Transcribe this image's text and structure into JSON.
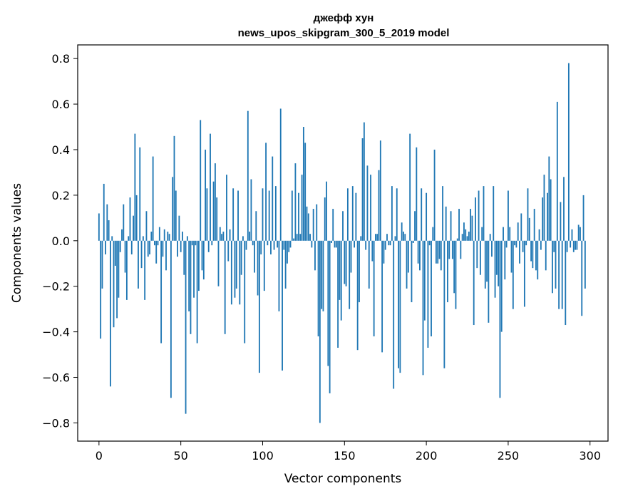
{
  "chart_data": {
    "type": "bar",
    "title": "джефф хун",
    "subtitle": "news_upos_skipgram_300_5_2019 model",
    "xlabel": "Vector components",
    "ylabel": "Components values",
    "xlim": [
      -13,
      311
    ],
    "ylim": [
      -0.88,
      0.86
    ],
    "xticks": [
      0,
      50,
      100,
      150,
      200,
      250,
      300
    ],
    "yticks": [
      -0.8,
      -0.6,
      -0.4,
      -0.2,
      0.0,
      0.2,
      0.4,
      0.6,
      0.8
    ],
    "ytick_labels": [
      "−0.8",
      "−0.6",
      "−0.4",
      "−0.2",
      "0.0",
      "0.2",
      "0.4",
      "0.6",
      "0.8"
    ],
    "grid": false,
    "bar_color": "#1f77b4",
    "x": "0..299",
    "values": [
      0.12,
      -0.43,
      -0.21,
      0.25,
      -0.06,
      0.16,
      0.09,
      -0.64,
      0.02,
      -0.38,
      -0.11,
      -0.34,
      -0.25,
      -0.05,
      0.05,
      0.16,
      -0.14,
      -0.26,
      0.02,
      0.19,
      -0.06,
      0.11,
      0.47,
      0.2,
      -0.21,
      0.41,
      -0.12,
      0.02,
      -0.26,
      0.13,
      -0.07,
      -0.06,
      0.04,
      0.37,
      -0.02,
      -0.1,
      -0.02,
      0.06,
      -0.45,
      -0.07,
      0.05,
      -0.13,
      0.04,
      0.03,
      -0.69,
      0.28,
      0.46,
      0.22,
      -0.07,
      0.11,
      -0.05,
      0.04,
      -0.15,
      -0.76,
      0.02,
      -0.31,
      -0.41,
      -0.02,
      -0.25,
      -0.02,
      -0.45,
      -0.22,
      0.53,
      -0.13,
      -0.17,
      0.4,
      0.23,
      -0.05,
      0.47,
      -0.02,
      0.26,
      0.34,
      0.19,
      -0.2,
      0.06,
      0.03,
      0.04,
      -0.41,
      0.29,
      -0.09,
      0.05,
      -0.28,
      0.23,
      -0.25,
      -0.21,
      0.22,
      -0.28,
      -0.15,
      0.02,
      -0.45,
      -0.04,
      0.57,
      0.04,
      0.27,
      -0.02,
      -0.14,
      0.13,
      -0.24,
      -0.58,
      -0.06,
      0.23,
      -0.22,
      0.43,
      -0.02,
      0.22,
      -0.06,
      0.37,
      -0.04,
      0.24,
      -0.03,
      -0.31,
      0.58,
      -0.57,
      -0.04,
      -0.21,
      -0.1,
      -0.05,
      -0.03,
      0.22,
      0.01,
      0.34,
      0.03,
      0.21,
      0.03,
      0.29,
      0.5,
      0.43,
      0.15,
      0.12,
      0.03,
      -0.03,
      0.14,
      -0.13,
      0.16,
      -0.42,
      -0.8,
      -0.3,
      -0.31,
      0.19,
      0.26,
      -0.55,
      -0.67,
      -0.01,
      0.14,
      -0.03,
      -0.03,
      -0.47,
      -0.26,
      -0.35,
      0.13,
      -0.19,
      -0.2,
      0.23,
      -0.3,
      -0.14,
      0.24,
      -0.03,
      0.21,
      -0.48,
      -0.27,
      0.02,
      0.45,
      0.52,
      -0.04,
      0.33,
      -0.21,
      0.29,
      -0.09,
      -0.42,
      0.03,
      0.03,
      0.31,
      0.44,
      -0.49,
      -0.1,
      -0.04,
      0.03,
      -0.02,
      -0.02,
      0.24,
      -0.65,
      0.02,
      0.23,
      -0.56,
      -0.58,
      0.08,
      0.04,
      0.03,
      -0.21,
      -0.14,
      0.47,
      -0.27,
      -0.01,
      0.13,
      0.41,
      -0.1,
      -0.13,
      0.23,
      -0.59,
      -0.35,
      0.21,
      -0.47,
      -0.02,
      -0.42,
      0.06,
      0.4,
      -0.1,
      -0.1,
      -0.08,
      -0.13,
      0.24,
      -0.56,
      0.15,
      -0.27,
      -0.08,
      0.13,
      -0.08,
      -0.23,
      -0.3,
      0.01,
      0.14,
      -0.08,
      0.03,
      0.08,
      0.05,
      0.02,
      0.04,
      0.14,
      0.11,
      -0.37,
      0.19,
      -0.12,
      0.22,
      -0.15,
      0.06,
      0.24,
      -0.21,
      -0.18,
      -0.36,
      0.03,
      -0.07,
      0.24,
      -0.25,
      -0.15,
      -0.2,
      -0.69,
      -0.4,
      0.06,
      -0.17,
      -0.03,
      0.22,
      0.06,
      -0.14,
      -0.3,
      -0.02,
      -0.03,
      0.08,
      -0.1,
      0.12,
      -0.05,
      -0.29,
      -0.02,
      0.23,
      0.1,
      -0.09,
      -0.12,
      0.14,
      -0.13,
      -0.17,
      0.05,
      -0.04,
      0.19,
      0.29,
      -0.13,
      0.21,
      0.37,
      0.27,
      -0.23,
      -0.05,
      -0.21,
      0.61,
      -0.3,
      0.17,
      -0.3,
      0.28,
      -0.37,
      -0.05,
      0.78,
      -0.03,
      0.05,
      -0.05,
      -0.04,
      -0.04,
      0.07,
      0.06,
      -0.33,
      0.2,
      -0.21
    ]
  }
}
